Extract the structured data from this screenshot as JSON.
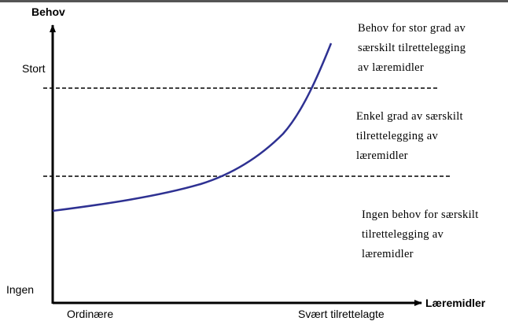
{
  "y_axis": {
    "title": "Behov",
    "high": "Stort",
    "low": "Ingen"
  },
  "x_axis": {
    "title": "Læremidler",
    "low": "Ordinære",
    "high": "Svært tilrettelagte"
  },
  "zones": [
    {
      "lines": [
        "Behov for stor grad av",
        "særskilt tilrettelegging",
        "av læremidler"
      ]
    },
    {
      "lines": [
        "Enkel grad av særskilt",
        "tilrettelegging av",
        "læremidler"
      ]
    },
    {
      "lines": [
        "Ingen behov for særskilt",
        "tilrettelegging av",
        "læremidler"
      ]
    }
  ]
}
